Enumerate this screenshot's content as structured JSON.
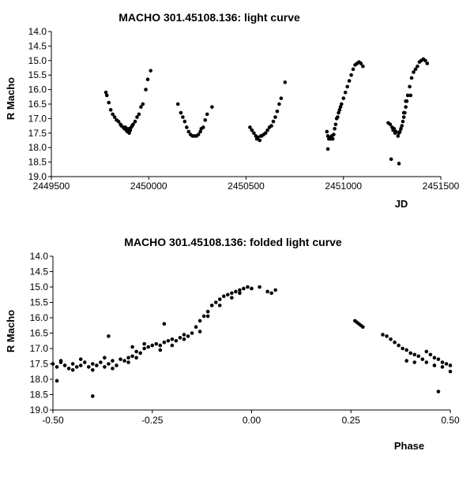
{
  "chart_data": [
    {
      "type": "scatter",
      "title": "MACHO 301.45108.136: light curve",
      "xlabel": "JD",
      "ylabel": "R Macho",
      "xlim": [
        2449500,
        2451500
      ],
      "ylim": [
        14.0,
        19.0
      ],
      "y_inverted": true,
      "grid": false,
      "legend": "none",
      "marker_color": "#000000",
      "xticks": [
        "2449500",
        "2450000",
        "2450500",
        "2451000",
        "2451500"
      ],
      "yticks": [
        "14.0",
        "14.5",
        "15.0",
        "15.5",
        "16.0",
        "16.5",
        "17.0",
        "17.5",
        "18.0",
        "18.5",
        "19.0"
      ],
      "series": [
        {
          "points": [
            [
              2449780,
              16.1
            ],
            [
              2449785,
              16.2
            ],
            [
              2449795,
              16.45
            ],
            [
              2449805,
              16.7
            ],
            [
              2449815,
              16.85
            ],
            [
              2449825,
              16.95
            ],
            [
              2449835,
              17.05
            ],
            [
              2449845,
              17.1
            ],
            [
              2449855,
              17.2
            ],
            [
              2449860,
              17.25
            ],
            [
              2449870,
              17.3
            ],
            [
              2449875,
              17.35
            ],
            [
              2449880,
              17.3
            ],
            [
              2449885,
              17.4
            ],
            [
              2449890,
              17.45
            ],
            [
              2449895,
              17.35
            ],
            [
              2449900,
              17.5
            ],
            [
              2449905,
              17.4
            ],
            [
              2449910,
              17.3
            ],
            [
              2449915,
              17.25
            ],
            [
              2449920,
              17.2
            ],
            [
              2449930,
              17.1
            ],
            [
              2449940,
              16.95
            ],
            [
              2449950,
              16.85
            ],
            [
              2449960,
              16.6
            ],
            [
              2449970,
              16.5
            ],
            [
              2449985,
              16.0
            ],
            [
              2449995,
              15.65
            ],
            [
              2450010,
              15.35
            ],
            [
              2450150,
              16.5
            ],
            [
              2450165,
              16.8
            ],
            [
              2450175,
              16.95
            ],
            [
              2450185,
              17.1
            ],
            [
              2450195,
              17.3
            ],
            [
              2450205,
              17.45
            ],
            [
              2450215,
              17.55
            ],
            [
              2450225,
              17.6
            ],
            [
              2450235,
              17.6
            ],
            [
              2450245,
              17.6
            ],
            [
              2450255,
              17.55
            ],
            [
              2450265,
              17.45
            ],
            [
              2450270,
              17.35
            ],
            [
              2450280,
              17.3
            ],
            [
              2450290,
              17.05
            ],
            [
              2450300,
              16.85
            ],
            [
              2450325,
              16.6
            ],
            [
              2450520,
              17.3
            ],
            [
              2450530,
              17.4
            ],
            [
              2450540,
              17.5
            ],
            [
              2450550,
              17.6
            ],
            [
              2450555,
              17.7
            ],
            [
              2450560,
              17.65
            ],
            [
              2450570,
              17.75
            ],
            [
              2450575,
              17.6
            ],
            [
              2450580,
              17.6
            ],
            [
              2450590,
              17.55
            ],
            [
              2450600,
              17.5
            ],
            [
              2450610,
              17.4
            ],
            [
              2450620,
              17.3
            ],
            [
              2450630,
              17.25
            ],
            [
              2450640,
              17.1
            ],
            [
              2450650,
              16.95
            ],
            [
              2450660,
              16.75
            ],
            [
              2450670,
              16.5
            ],
            [
              2450680,
              16.3
            ],
            [
              2450700,
              15.75
            ],
            [
              2450915,
              17.45
            ],
            [
              2450920,
              17.6
            ],
            [
              2450925,
              17.7
            ],
            [
              2450930,
              17.65
            ],
            [
              2450935,
              17.7
            ],
            [
              2450940,
              17.6
            ],
            [
              2450945,
              17.7
            ],
            [
              2450950,
              17.55
            ],
            [
              2450955,
              17.35
            ],
            [
              2450960,
              17.2
            ],
            [
              2450965,
              17.0
            ],
            [
              2450970,
              16.95
            ],
            [
              2450975,
              16.8
            ],
            [
              2450980,
              16.7
            ],
            [
              2450985,
              16.6
            ],
            [
              2450990,
              16.5
            ],
            [
              2451000,
              16.3
            ],
            [
              2451010,
              16.1
            ],
            [
              2451020,
              15.9
            ],
            [
              2451030,
              15.7
            ],
            [
              2451040,
              15.5
            ],
            [
              2451050,
              15.3
            ],
            [
              2451060,
              15.15
            ],
            [
              2451070,
              15.1
            ],
            [
              2451080,
              15.05
            ],
            [
              2451090,
              15.1
            ],
            [
              2451100,
              15.2
            ],
            [
              2450920,
              18.05
            ],
            [
              2451230,
              17.15
            ],
            [
              2451240,
              17.2
            ],
            [
              2451250,
              17.3
            ],
            [
              2451255,
              17.4
            ],
            [
              2451260,
              17.35
            ],
            [
              2451265,
              17.5
            ],
            [
              2451270,
              17.45
            ],
            [
              2451280,
              17.6
            ],
            [
              2451285,
              17.5
            ],
            [
              2451290,
              17.45
            ],
            [
              2451295,
              17.35
            ],
            [
              2451300,
              17.25
            ],
            [
              2451305,
              17.1
            ],
            [
              2451310,
              16.95
            ],
            [
              2451315,
              16.8
            ],
            [
              2451320,
              16.6
            ],
            [
              2451325,
              16.4
            ],
            [
              2451330,
              16.2
            ],
            [
              2451340,
              15.9
            ],
            [
              2451350,
              15.6
            ],
            [
              2451360,
              15.4
            ],
            [
              2451370,
              15.3
            ],
            [
              2451380,
              15.2
            ],
            [
              2451390,
              15.05
            ],
            [
              2451400,
              15.0
            ],
            [
              2451410,
              14.95
            ],
            [
              2451420,
              15.0
            ],
            [
              2451430,
              15.1
            ],
            [
              2451245,
              18.4
            ],
            [
              2451285,
              18.55
            ],
            [
              2451310,
              16.8
            ],
            [
              2451320,
              16.4
            ],
            [
              2451345,
              16.2
            ]
          ]
        }
      ]
    },
    {
      "type": "scatter",
      "title": "MACHO 301.45108.136: folded light curve",
      "xlabel": "Phase",
      "ylabel": "R Macho",
      "xlim": [
        -0.5,
        0.5
      ],
      "ylim": [
        14.0,
        19.0
      ],
      "y_inverted": true,
      "grid": false,
      "legend": "none",
      "marker_color": "#000000",
      "xticks": [
        "-0.50",
        "-0.25",
        "0.00",
        "0.25",
        "0.50"
      ],
      "yticks": [
        "14.0",
        "14.5",
        "15.0",
        "15.5",
        "16.0",
        "16.5",
        "17.0",
        "17.5",
        "18.0",
        "18.5",
        "19.0"
      ],
      "series": [
        {
          "points": [
            [
              -0.5,
              17.5
            ],
            [
              -0.49,
              17.6
            ],
            [
              -0.48,
              17.45
            ],
            [
              -0.47,
              17.55
            ],
            [
              -0.46,
              17.65
            ],
            [
              -0.45,
              17.5
            ],
            [
              -0.44,
              17.6
            ],
            [
              -0.43,
              17.55
            ],
            [
              -0.42,
              17.45
            ],
            [
              -0.41,
              17.6
            ],
            [
              -0.4,
              17.5
            ],
            [
              -0.39,
              17.55
            ],
            [
              -0.38,
              17.45
            ],
            [
              -0.37,
              17.6
            ],
            [
              -0.36,
              17.5
            ],
            [
              -0.35,
              17.4
            ],
            [
              -0.34,
              17.55
            ],
            [
              -0.33,
              17.35
            ],
            [
              -0.32,
              17.4
            ],
            [
              -0.31,
              17.3
            ],
            [
              -0.3,
              17.25
            ],
            [
              -0.29,
              17.1
            ],
            [
              -0.28,
              17.15
            ],
            [
              -0.27,
              17.0
            ],
            [
              -0.26,
              16.95
            ],
            [
              -0.25,
              16.9
            ],
            [
              -0.24,
              16.85
            ],
            [
              -0.23,
              16.9
            ],
            [
              -0.22,
              16.8
            ],
            [
              -0.21,
              16.75
            ],
            [
              -0.2,
              16.7
            ],
            [
              -0.19,
              16.75
            ],
            [
              -0.18,
              16.65
            ],
            [
              -0.17,
              16.7
            ],
            [
              -0.16,
              16.6
            ],
            [
              -0.15,
              16.5
            ],
            [
              -0.14,
              16.3
            ],
            [
              -0.13,
              16.1
            ],
            [
              -0.12,
              15.95
            ],
            [
              -0.11,
              15.8
            ],
            [
              -0.1,
              15.6
            ],
            [
              -0.09,
              15.5
            ],
            [
              -0.08,
              15.4
            ],
            [
              -0.07,
              15.3
            ],
            [
              -0.06,
              15.25
            ],
            [
              -0.05,
              15.2
            ],
            [
              -0.04,
              15.15
            ],
            [
              -0.03,
              15.1
            ],
            [
              -0.02,
              15.05
            ],
            [
              -0.01,
              15.0
            ],
            [
              0.0,
              15.05
            ],
            [
              0.02,
              15.0
            ],
            [
              0.04,
              15.15
            ],
            [
              0.05,
              15.2
            ],
            [
              0.06,
              15.1
            ],
            [
              -0.48,
              17.4
            ],
            [
              -0.45,
              17.7
            ],
            [
              -0.43,
              17.35
            ],
            [
              -0.4,
              17.7
            ],
            [
              -0.37,
              17.3
            ],
            [
              -0.35,
              17.65
            ],
            [
              -0.31,
              17.45
            ],
            [
              -0.29,
              17.3
            ],
            [
              -0.27,
              16.85
            ],
            [
              -0.23,
              17.05
            ],
            [
              -0.2,
              16.9
            ],
            [
              -0.17,
              16.55
            ],
            [
              -0.13,
              16.45
            ],
            [
              -0.11,
              15.95
            ],
            [
              -0.08,
              15.6
            ],
            [
              -0.05,
              15.35
            ],
            [
              -0.03,
              15.2
            ],
            [
              -0.49,
              18.05
            ],
            [
              -0.4,
              18.55
            ],
            [
              -0.36,
              16.6
            ],
            [
              -0.22,
              16.2
            ],
            [
              -0.3,
              16.95
            ],
            [
              0.26,
              16.1
            ],
            [
              0.265,
              16.15
            ],
            [
              0.27,
              16.2
            ],
            [
              0.275,
              16.25
            ],
            [
              0.28,
              16.3
            ],
            [
              0.33,
              16.55
            ],
            [
              0.34,
              16.6
            ],
            [
              0.35,
              16.7
            ],
            [
              0.36,
              16.8
            ],
            [
              0.37,
              16.9
            ],
            [
              0.38,
              17.0
            ],
            [
              0.39,
              17.05
            ],
            [
              0.4,
              17.15
            ],
            [
              0.41,
              17.2
            ],
            [
              0.42,
              17.25
            ],
            [
              0.43,
              17.35
            ],
            [
              0.44,
              17.1
            ],
            [
              0.45,
              17.2
            ],
            [
              0.46,
              17.3
            ],
            [
              0.47,
              17.35
            ],
            [
              0.48,
              17.45
            ],
            [
              0.49,
              17.5
            ],
            [
              0.5,
              17.55
            ],
            [
              0.39,
              17.4
            ],
            [
              0.41,
              17.45
            ],
            [
              0.44,
              17.45
            ],
            [
              0.46,
              17.55
            ],
            [
              0.48,
              17.6
            ],
            [
              0.5,
              17.75
            ],
            [
              0.47,
              18.4
            ]
          ]
        }
      ]
    }
  ]
}
